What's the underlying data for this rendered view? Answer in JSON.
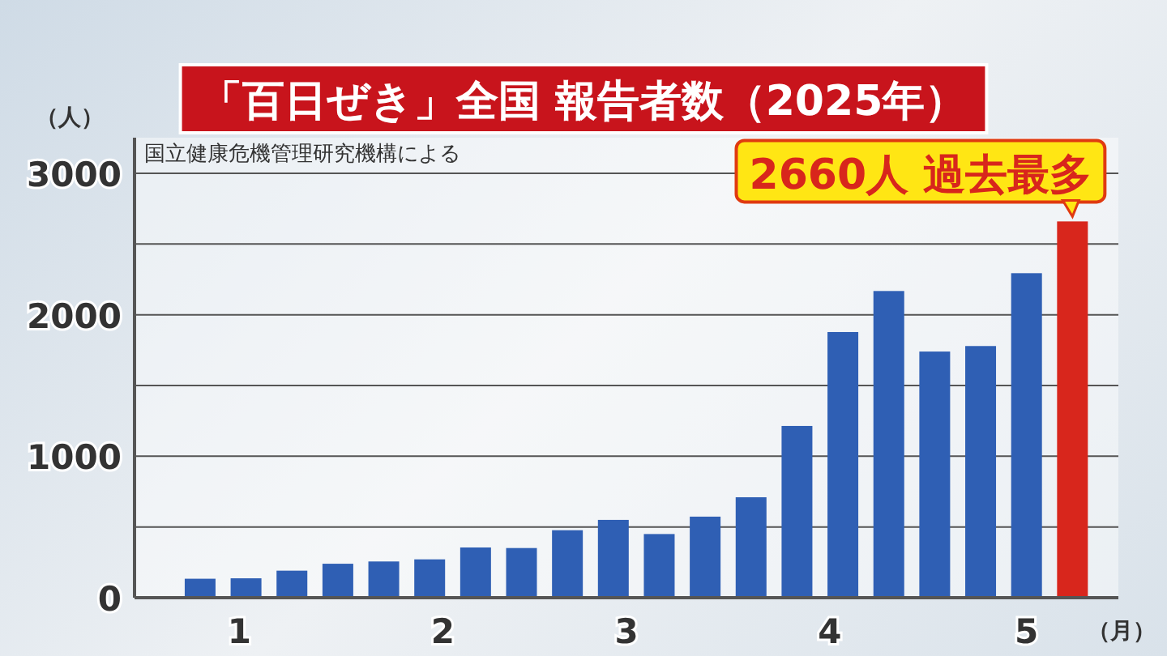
{
  "chart_data": {
    "type": "bar",
    "title": "「百日ぜき」全国 報告者数（2025年）",
    "ylabel": "（人）",
    "xlabel": "（月）",
    "x": [
      "2025-01-02",
      "2025-01-09",
      "2025-01-16",
      "2025-01-23",
      "2025-01-30",
      "2025-02-06",
      "2025-02-13",
      "2025-02-20",
      "2025-02-27",
      "2025-03-06",
      "2025-03-13",
      "2025-03-20",
      "2025-03-27",
      "2025-04-03",
      "2025-04-10",
      "2025-04-17",
      "2025-04-24",
      "2025-05-01",
      "2025-05-08",
      "2025-05-15",
      "2025-05-22"
    ],
    "values": [
      10,
      134,
      137,
      191,
      240,
      256,
      271,
      355,
      351,
      477,
      550,
      450,
      573,
      710,
      1214,
      1878,
      2168,
      1740,
      1779,
      2294,
      2660
    ],
    "colors": [
      "#2f5fb4",
      "#2f5fb4",
      "#2f5fb4",
      "#2f5fb4",
      "#2f5fb4",
      "#2f5fb4",
      "#2f5fb4",
      "#2f5fb4",
      "#2f5fb4",
      "#2f5fb4",
      "#2f5fb4",
      "#2f5fb4",
      "#2f5fb4",
      "#2f5fb4",
      "#2f5fb4",
      "#2f5fb4",
      "#2f5fb4",
      "#2f5fb4",
      "#2f5fb4",
      "#2f5fb4",
      "#d8261c"
    ],
    "xlim": [
      "2024-12-30",
      "2025-05-29"
    ],
    "xticks": [
      {
        "value": "2025-01-15",
        "label": "1"
      },
      {
        "value": "2025-02-15",
        "label": "2"
      },
      {
        "value": "2025-03-15",
        "label": "3"
      },
      {
        "value": "2025-04-15",
        "label": "4"
      },
      {
        "value": "2025-05-15",
        "label": "5"
      }
    ],
    "ylim": [
      0,
      3000
    ],
    "yticks": [
      0,
      {
        "value": 500,
        "label": null
      },
      1000,
      {
        "value": 1500,
        "label": null
      },
      2000,
      {
        "value": 2500,
        "label": null
      },
      3000
    ],
    "grid": "y",
    "annotations": [
      "国立健康危機管理研究機構による",
      {
        "text": "2660人 過去最多",
        "x": "2025-05-22",
        "y": 2660
      }
    ]
  }
}
